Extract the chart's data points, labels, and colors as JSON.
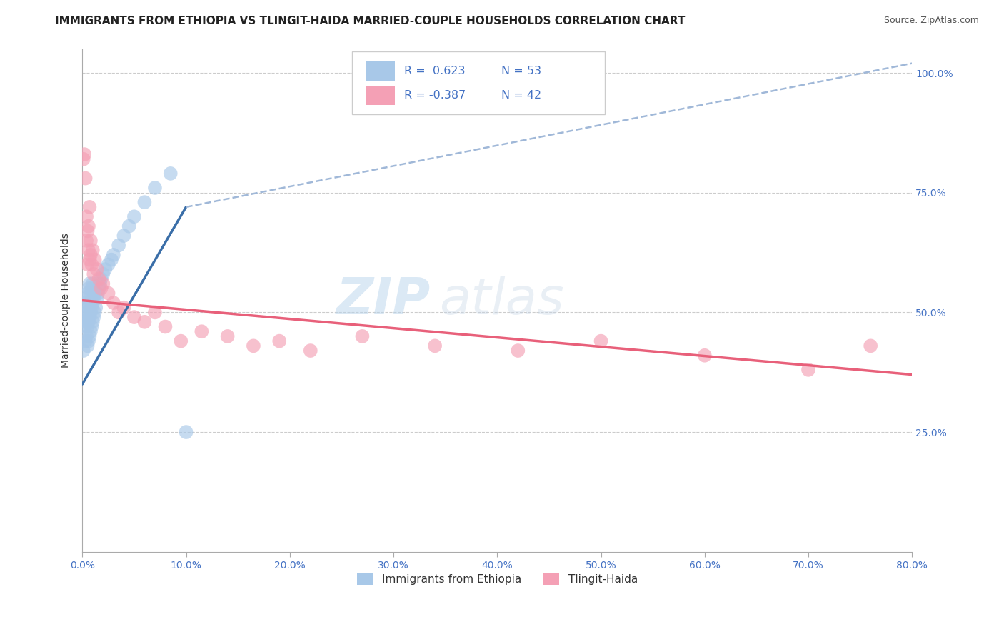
{
  "title": "IMMIGRANTS FROM ETHIOPIA VS TLINGIT-HAIDA MARRIED-COUPLE HOUSEHOLDS CORRELATION CHART",
  "source": "Source: ZipAtlas.com",
  "ylabel_left": "Married-couple Households",
  "legend_label1": "Immigrants from Ethiopia",
  "legend_label2": "Tlingit-Haida",
  "r1": 0.623,
  "n1": 53,
  "r2": -0.387,
  "n2": 42,
  "x_min": 0.0,
  "x_max": 0.8,
  "y_min": 0.0,
  "y_max": 1.05,
  "color_blue": "#A8C8E8",
  "color_pink": "#F4A0B5",
  "color_line_blue": "#3A6EA8",
  "color_line_pink": "#E8607A",
  "color_line_dash": "#A0B8D8",
  "watermark_zip": "ZIP",
  "watermark_atlas": "atlas",
  "blue_scatter_x": [
    0.001,
    0.002,
    0.002,
    0.003,
    0.003,
    0.003,
    0.004,
    0.004,
    0.004,
    0.005,
    0.005,
    0.005,
    0.005,
    0.006,
    0.006,
    0.006,
    0.006,
    0.007,
    0.007,
    0.007,
    0.007,
    0.008,
    0.008,
    0.008,
    0.009,
    0.009,
    0.009,
    0.01,
    0.01,
    0.01,
    0.011,
    0.011,
    0.012,
    0.012,
    0.013,
    0.014,
    0.015,
    0.016,
    0.017,
    0.018,
    0.02,
    0.022,
    0.025,
    0.028,
    0.03,
    0.035,
    0.04,
    0.045,
    0.05,
    0.06,
    0.07,
    0.085,
    0.1
  ],
  "blue_scatter_y": [
    0.42,
    0.47,
    0.5,
    0.44,
    0.48,
    0.52,
    0.45,
    0.49,
    0.53,
    0.43,
    0.47,
    0.5,
    0.54,
    0.44,
    0.48,
    0.51,
    0.55,
    0.45,
    0.49,
    0.52,
    0.56,
    0.46,
    0.5,
    0.54,
    0.47,
    0.51,
    0.55,
    0.48,
    0.52,
    0.56,
    0.49,
    0.53,
    0.5,
    0.54,
    0.51,
    0.53,
    0.54,
    0.55,
    0.56,
    0.57,
    0.58,
    0.59,
    0.6,
    0.61,
    0.62,
    0.64,
    0.66,
    0.68,
    0.7,
    0.73,
    0.76,
    0.79,
    0.25
  ],
  "pink_scatter_x": [
    0.001,
    0.002,
    0.003,
    0.004,
    0.004,
    0.005,
    0.005,
    0.006,
    0.006,
    0.007,
    0.007,
    0.008,
    0.008,
    0.009,
    0.01,
    0.011,
    0.012,
    0.014,
    0.016,
    0.018,
    0.02,
    0.025,
    0.03,
    0.035,
    0.04,
    0.05,
    0.06,
    0.07,
    0.08,
    0.095,
    0.115,
    0.14,
    0.165,
    0.19,
    0.22,
    0.27,
    0.34,
    0.42,
    0.5,
    0.6,
    0.7,
    0.76
  ],
  "pink_scatter_y": [
    0.82,
    0.83,
    0.78,
    0.65,
    0.7,
    0.6,
    0.67,
    0.63,
    0.68,
    0.72,
    0.61,
    0.65,
    0.62,
    0.6,
    0.63,
    0.58,
    0.61,
    0.59,
    0.57,
    0.55,
    0.56,
    0.54,
    0.52,
    0.5,
    0.51,
    0.49,
    0.48,
    0.5,
    0.47,
    0.44,
    0.46,
    0.45,
    0.43,
    0.44,
    0.42,
    0.45,
    0.43,
    0.42,
    0.44,
    0.41,
    0.38,
    0.43
  ],
  "blue_line_x_start": 0.0,
  "blue_line_x_solid_end": 0.1,
  "blue_line_x_dash_end": 0.8,
  "blue_line_y_at_0": 0.35,
  "blue_line_y_at_010": 0.72,
  "blue_line_y_at_080": 1.02,
  "pink_line_x_start": 0.0,
  "pink_line_x_end": 0.8,
  "pink_line_y_at_0": 0.525,
  "pink_line_y_at_080": 0.37,
  "y_ticks": [
    0.25,
    0.5,
    0.75,
    1.0
  ],
  "y_tick_labels": [
    "25.0%",
    "50.0%",
    "75.0%",
    "100.0%"
  ],
  "x_ticks": [
    0.0,
    0.1,
    0.2,
    0.3,
    0.4,
    0.5,
    0.6,
    0.7,
    0.8
  ],
  "x_tick_labels": [
    "0.0%",
    "10.0%",
    "20.0%",
    "30.0%",
    "40.0%",
    "50.0%",
    "60.0%",
    "70.0%",
    "80.0%"
  ],
  "tick_color": "#4472C4",
  "axis_color": "#aaaaaa"
}
